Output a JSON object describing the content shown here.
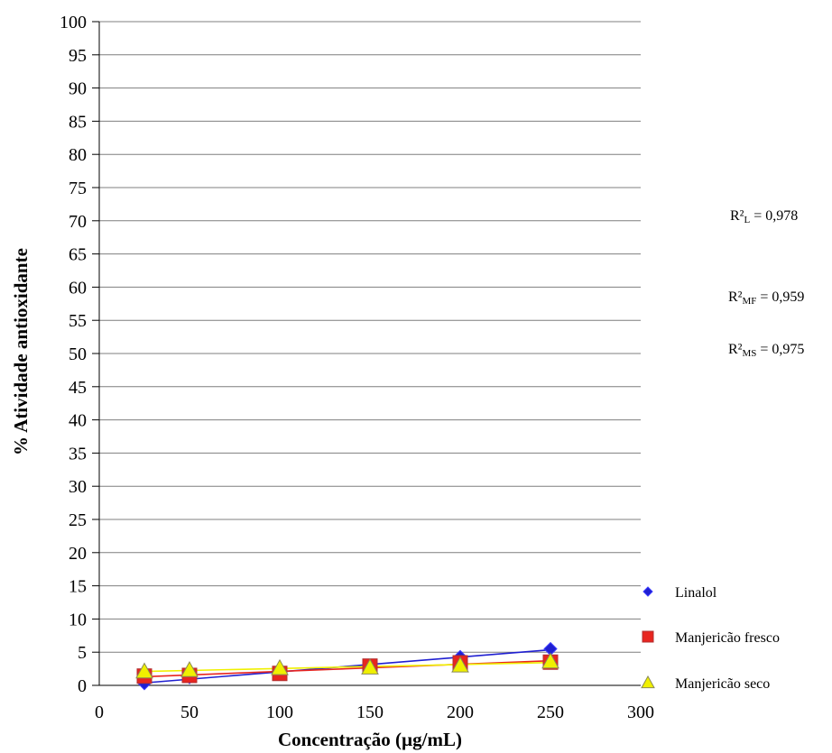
{
  "colors": {
    "linalol": "#1f1fd1",
    "fresco": "#e8251f",
    "seco": "#f0f000",
    "gridline": "#7f7f7f",
    "axis": "#000000"
  },
  "r2": [
    {
      "prefix": "R²",
      "sub": "L",
      "suffix": " = 0,978"
    },
    {
      "prefix": "R²",
      "sub": "MF",
      "suffix": " = 0,959"
    },
    {
      "prefix": "R²",
      "sub": "MS",
      "suffix": " = 0,975"
    }
  ],
  "chart_data": {
    "type": "scatter",
    "xlabel": "Concentração (µg/mL)",
    "ylabel": "% Atividade antioxidante",
    "xlim": [
      0,
      300
    ],
    "ylim": [
      0,
      100
    ],
    "xticks": [
      0,
      50,
      100,
      150,
      200,
      250,
      300
    ],
    "yticks": [
      0,
      5,
      10,
      15,
      20,
      25,
      30,
      35,
      40,
      45,
      50,
      55,
      60,
      65,
      70,
      75,
      80,
      85,
      90,
      95,
      100
    ],
    "grid": "horizontal",
    "legend_position": "right",
    "series": [
      {
        "name": "Linalol",
        "marker": "diamond",
        "trendline": true,
        "x": [
          25,
          50,
          100,
          150,
          200,
          250
        ],
        "y": [
          0.3,
          1.2,
          2.0,
          2.8,
          4.3,
          5.5
        ]
      },
      {
        "name": "Manjericão fresco",
        "marker": "square",
        "trendline": true,
        "x": [
          25,
          50,
          100,
          150,
          200,
          250
        ],
        "y": [
          1.4,
          1.5,
          1.8,
          2.9,
          3.4,
          3.5
        ]
      },
      {
        "name": "Manjericão seco",
        "marker": "triangle",
        "trendline": true,
        "x": [
          25,
          50,
          100,
          150,
          200,
          250
        ],
        "y": [
          2.1,
          2.3,
          2.6,
          2.7,
          3.0,
          3.6
        ]
      }
    ]
  }
}
